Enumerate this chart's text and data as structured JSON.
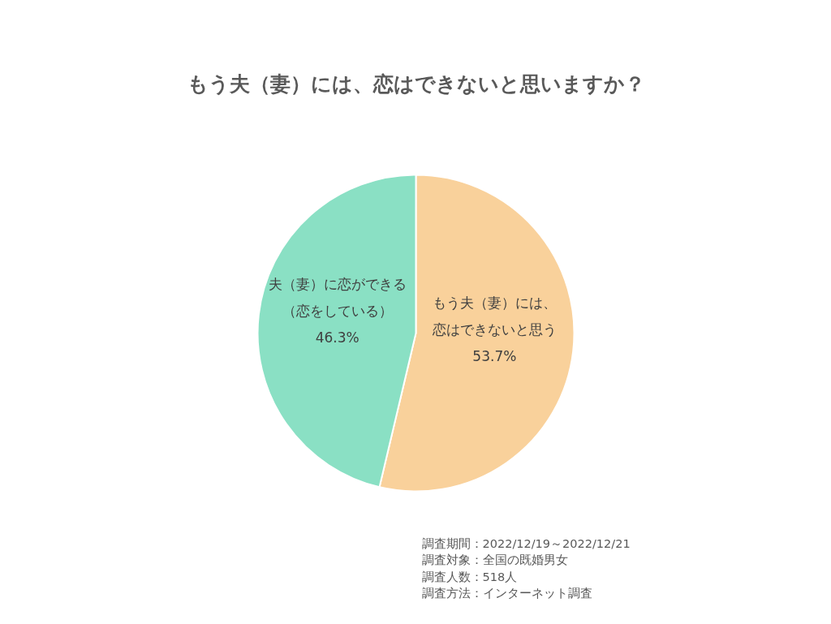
{
  "chart_data": {
    "type": "pie",
    "title": "もう夫（妻）には、恋はできないと思いますか？",
    "categories": [
      "もう夫（妻）には、恋はできないと思う",
      "夫（妻）に恋ができる（恋をしている）"
    ],
    "values": [
      53.7,
      46.3
    ],
    "colors": [
      "#f9d19b",
      "#8ae0c4"
    ],
    "value_labels": [
      "53.7%",
      "46.3%"
    ],
    "annotations": [
      "調査期間：2022/12/19～2022/12/21",
      "調査対象：全国の既婚男女",
      "調査人数：518人",
      "調査方法：インターネット調査"
    ]
  }
}
